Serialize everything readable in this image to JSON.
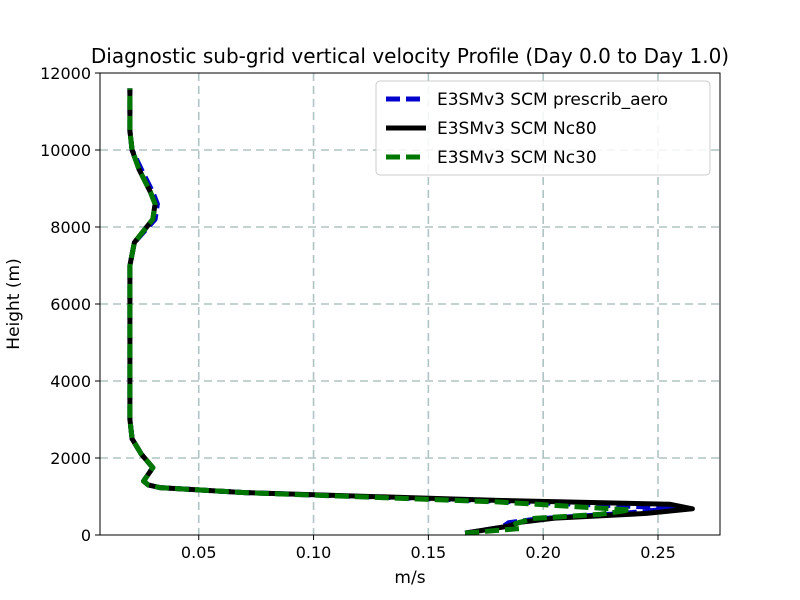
{
  "chart_data": {
    "type": "line",
    "title": "Diagnostic sub-grid vertical velocity Profile (Day 0.0 to Day 1.0)",
    "xlabel": "m/s",
    "ylabel": "Height (m)",
    "xlim": [
      0.007,
      0.277
    ],
    "ylim": [
      0,
      12000
    ],
    "xticks": [
      0.05,
      0.1,
      0.15,
      0.2,
      0.25
    ],
    "xtick_labels": [
      "0.05",
      "0.10",
      "0.15",
      "0.20",
      "0.25"
    ],
    "yticks": [
      0,
      2000,
      4000,
      6000,
      8000,
      10000,
      12000
    ],
    "ytick_labels": [
      "0",
      "2000",
      "4000",
      "6000",
      "8000",
      "10000",
      "12000"
    ],
    "grid": true,
    "legend_position": "top-right",
    "series": [
      {
        "name": "E3SMv3 SCM prescrib_aero",
        "color": "#0000cc",
        "style": "dashed",
        "points": [
          [
            0.166,
            50
          ],
          [
            0.182,
            200
          ],
          [
            0.185,
            320
          ],
          [
            0.198,
            420
          ],
          [
            0.235,
            560
          ],
          [
            0.258,
            700
          ],
          [
            0.18,
            880
          ],
          [
            0.07,
            1100
          ],
          [
            0.033,
            1230
          ],
          [
            0.028,
            1300
          ],
          [
            0.026,
            1400
          ],
          [
            0.03,
            1750
          ],
          [
            0.025,
            2100
          ],
          [
            0.021,
            2500
          ],
          [
            0.02,
            3000
          ],
          [
            0.02,
            4500
          ],
          [
            0.02,
            6000
          ],
          [
            0.02,
            7000
          ],
          [
            0.022,
            7600
          ],
          [
            0.031,
            8200
          ],
          [
            0.032,
            8600
          ],
          [
            0.03,
            8900
          ],
          [
            0.025,
            9500
          ],
          [
            0.021,
            10000
          ],
          [
            0.02,
            10500
          ],
          [
            0.02,
            11600
          ]
        ]
      },
      {
        "name": "E3SMv3 SCM Nc80",
        "color": "#000000",
        "style": "solid",
        "points": [
          [
            0.166,
            50
          ],
          [
            0.185,
            230
          ],
          [
            0.19,
            330
          ],
          [
            0.205,
            440
          ],
          [
            0.245,
            560
          ],
          [
            0.265,
            680
          ],
          [
            0.255,
            800
          ],
          [
            0.18,
            900
          ],
          [
            0.07,
            1100
          ],
          [
            0.033,
            1230
          ],
          [
            0.028,
            1300
          ],
          [
            0.026,
            1400
          ],
          [
            0.03,
            1750
          ],
          [
            0.025,
            2100
          ],
          [
            0.021,
            2500
          ],
          [
            0.02,
            3000
          ],
          [
            0.02,
            4500
          ],
          [
            0.02,
            6000
          ],
          [
            0.02,
            7000
          ],
          [
            0.022,
            7600
          ],
          [
            0.03,
            8200
          ],
          [
            0.031,
            8600
          ],
          [
            0.029,
            8900
          ],
          [
            0.024,
            9500
          ],
          [
            0.021,
            10000
          ],
          [
            0.02,
            10500
          ],
          [
            0.02,
            11600
          ]
        ]
      },
      {
        "name": "E3SMv3 SCM Nc30",
        "color": "#007700",
        "style": "dashed",
        "points": [
          [
            0.166,
            50
          ],
          [
            0.19,
            170
          ],
          [
            0.188,
            300
          ],
          [
            0.196,
            430
          ],
          [
            0.225,
            540
          ],
          [
            0.238,
            650
          ],
          [
            0.18,
            860
          ],
          [
            0.07,
            1100
          ],
          [
            0.033,
            1230
          ],
          [
            0.028,
            1300
          ],
          [
            0.026,
            1400
          ],
          [
            0.03,
            1750
          ],
          [
            0.025,
            2100
          ],
          [
            0.021,
            2500
          ],
          [
            0.02,
            3000
          ],
          [
            0.02,
            4500
          ],
          [
            0.02,
            6000
          ],
          [
            0.02,
            7000
          ],
          [
            0.022,
            7600
          ],
          [
            0.03,
            8200
          ],
          [
            0.031,
            8600
          ],
          [
            0.029,
            8900
          ],
          [
            0.024,
            9500
          ],
          [
            0.021,
            10000
          ],
          [
            0.02,
            10500
          ],
          [
            0.02,
            11600
          ]
        ]
      }
    ]
  }
}
